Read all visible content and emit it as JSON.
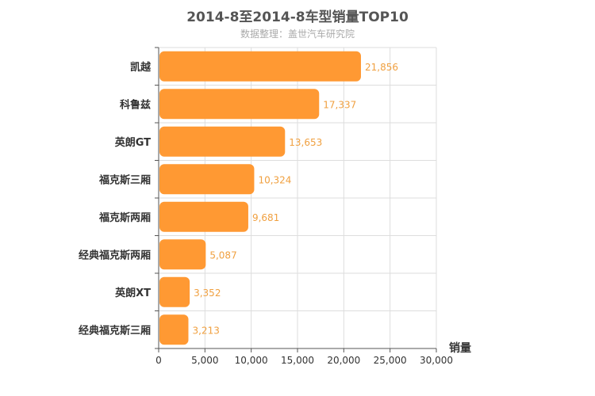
{
  "chart_data": {
    "type": "bar",
    "orientation": "horizontal",
    "title": "2014-8至2014-8车型销量TOP10",
    "subtitle": "数据整理：盖世汽车研究院",
    "categories": [
      "凯越",
      "科鲁兹",
      "英朗GT",
      "福克斯三厢",
      "福克斯两厢",
      "经典福克斯两厢",
      "英朗XT",
      "经典福克斯三厢"
    ],
    "values": [
      21856,
      17337,
      13653,
      10324,
      9681,
      5087,
      3352,
      3213
    ],
    "data_labels": [
      "21,856",
      "17,337",
      "13,653",
      "10,324",
      "9,681",
      "5,087",
      "3,352",
      "3,213"
    ],
    "xlabel": "销量",
    "ylabel": "",
    "xlim": [
      0,
      30000
    ],
    "ticks": [
      0,
      5000,
      10000,
      15000,
      20000,
      25000,
      30000
    ],
    "tick_labels": [
      "0",
      "5,000",
      "10,000",
      "15,000",
      "20,000",
      "25,000",
      "30,000"
    ],
    "grid": true,
    "bar_color": "#ff9933",
    "label_color": "#f0a040"
  }
}
